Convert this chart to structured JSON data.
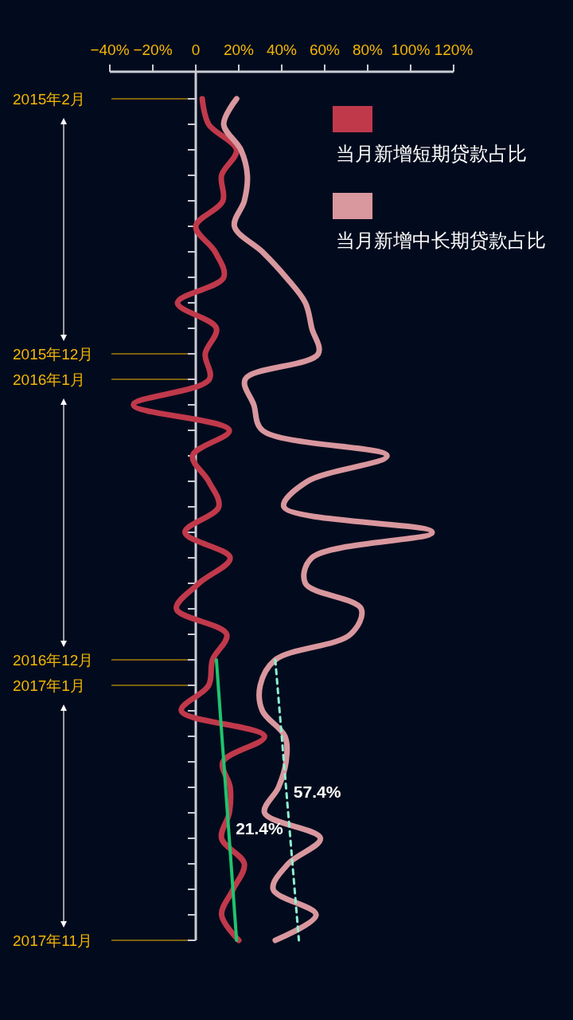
{
  "chart_data": {
    "type": "line",
    "orientation": "horizontal",
    "legend": "top right",
    "categories": [
      "2015年2月",
      null,
      null,
      null,
      null,
      null,
      null,
      null,
      null,
      null,
      "2015年12月",
      "2016年1月",
      null,
      null,
      null,
      null,
      null,
      null,
      null,
      null,
      null,
      null,
      "2016年12月",
      "2017年1月",
      null,
      null,
      null,
      null,
      null,
      null,
      null,
      null,
      null,
      "2017年11月"
    ],
    "xlim": [
      -40,
      120
    ],
    "xticks": [
      {
        "value": -40,
        "label": "−40%"
      },
      {
        "value": -20,
        "label": "−20%"
      },
      0,
      {
        "value": 20,
        "label": "20%"
      },
      {
        "value": 40,
        "label": "40%"
      },
      {
        "value": 60,
        "label": "60%"
      },
      {
        "value": 80,
        "label": "80%"
      },
      {
        "value": 100,
        "label": "100%"
      },
      {
        "value": 120,
        "label": "120%"
      }
    ],
    "series": [
      {
        "name": "当月新增短期贷款占比",
        "color": "#c0394b",
        "values": [
          3,
          6,
          19,
          12,
          12.6,
          0,
          9,
          13,
          -8.5,
          9.6,
          4.4,
          6.3,
          -29,
          15.6,
          -1.5,
          6,
          10.7,
          -5,
          16,
          1.5,
          -9,
          14.4,
          7.8,
          6,
          -6.7,
          32,
          12.6,
          16,
          15.6,
          12,
          22.6,
          17.4,
          12,
          20
        ]
      },
      {
        "name": "当月新增中长期贷款占比",
        "color": "#d9979e",
        "values": [
          19,
          13,
          21,
          24,
          22.6,
          18,
          31,
          42,
          51,
          54,
          57,
          23,
          27,
          31,
          89,
          52,
          41,
          110,
          54,
          51,
          77,
          72,
          37,
          30,
          31,
          41.5,
          42,
          38.5,
          32,
          58,
          43,
          36,
          56,
          37
        ]
      },
      {
        "color": "#1fc46e",
        "values": [
          null,
          null,
          null,
          null,
          null,
          null,
          null,
          null,
          null,
          null,
          null,
          null,
          null,
          null,
          null,
          null,
          null,
          null,
          null,
          null,
          null,
          null,
          9.6,
          null,
          null,
          null,
          null,
          null,
          null,
          null,
          null,
          null,
          null,
          19
        ]
      },
      {
        "color": "#8ef0d0",
        "line_style": "dashed",
        "values": [
          null,
          null,
          null,
          null,
          null,
          null,
          null,
          null,
          null,
          null,
          null,
          null,
          null,
          null,
          null,
          null,
          null,
          null,
          null,
          null,
          null,
          null,
          37,
          null,
          null,
          null,
          null,
          null,
          null,
          null,
          null,
          null,
          null,
          48
        ]
      }
    ],
    "annotations": [
      "21.4%",
      "57.4%"
    ]
  }
}
